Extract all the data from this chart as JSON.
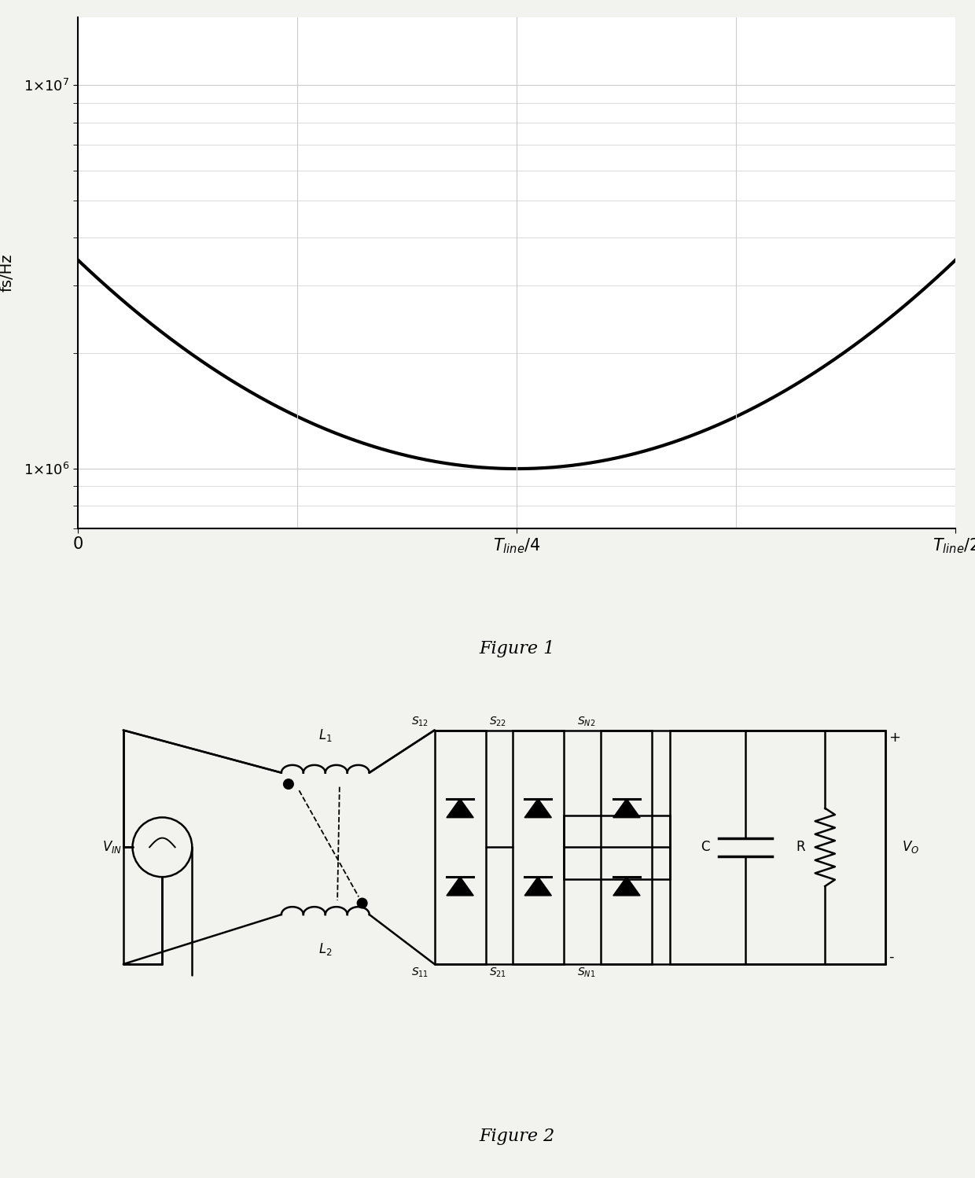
{
  "fig1": {
    "ylabel": "fs/Hz",
    "yticks": [
      1000000.0,
      10000000.0
    ],
    "ymin": 700000.0,
    "ymax": 15000000.0,
    "curve_color": "#000000",
    "curve_linewidth": 3.0,
    "grid_color": "#cccccc",
    "min_freq": 1000000.0,
    "max_freq": 3500000.0,
    "figure_caption": "Figure 1"
  },
  "fig2": {
    "figure_caption": "Figure 2"
  },
  "page_background": "#f2f2ee"
}
